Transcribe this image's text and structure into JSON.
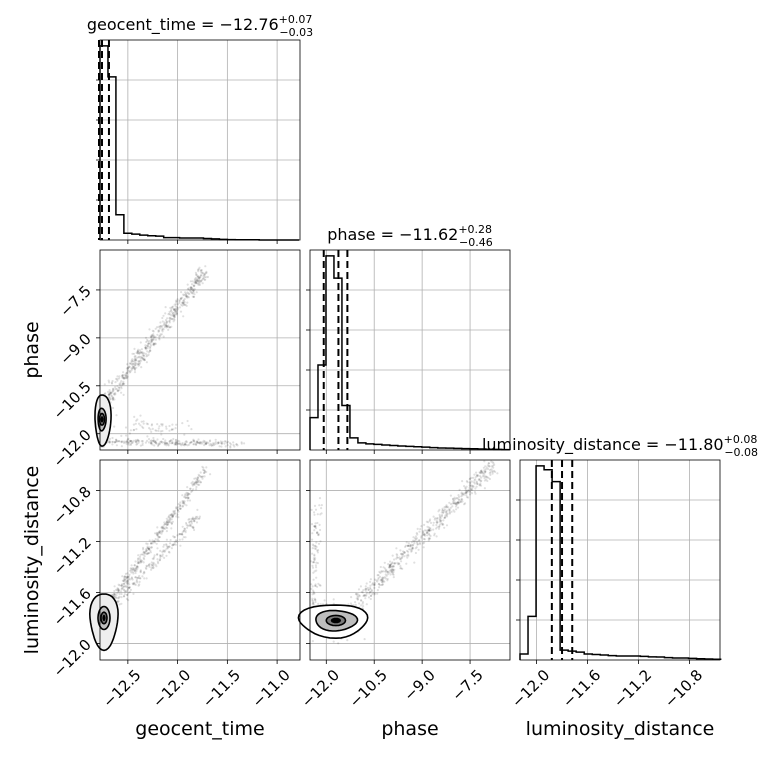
{
  "chart_data": {
    "type": "corner",
    "parameters": [
      "geocent_time",
      "phase",
      "luminosity_distance"
    ],
    "titles": [
      {
        "param": "geocent_time",
        "prefix": "geocent_time = ",
        "median": "−12.76",
        "plus": "+0.07",
        "minus": "−0.03"
      },
      {
        "param": "phase",
        "prefix": "phase = ",
        "median": "−11.62",
        "plus": "+0.28",
        "minus": "−0.46"
      },
      {
        "param": "luminosity_distance",
        "prefix": "luminosity_distance = ",
        "median": "−11.80",
        "plus": "+0.08",
        "minus": "−0.08"
      }
    ],
    "axis_labels": {
      "x": [
        "geocent_time",
        "phase",
        "luminosity_distance"
      ],
      "y": [
        "phase",
        "luminosity_distance"
      ]
    },
    "ranges": {
      "geocent_time": [
        -12.78,
        -10.77
      ],
      "phase": [
        -12.51,
        -6.25
      ],
      "luminosity_distance": [
        -12.13,
        -10.56
      ]
    },
    "ticks": {
      "geocent_time": {
        "values": [
          -12.5,
          -12.0,
          -11.5,
          -11.0
        ],
        "labels": [
          "−12.5",
          "−12.0",
          "−11.5",
          "−11.0"
        ]
      },
      "phase": {
        "values": [
          -12.0,
          -10.5,
          -9.0,
          -7.5
        ],
        "labels": [
          "−12.0",
          "−10.5",
          "−9.0",
          "−7.5"
        ]
      },
      "luminosity_distance": {
        "values": [
          -12.0,
          -11.6,
          -11.2,
          -10.8
        ],
        "labels": [
          "−12.0",
          "−11.6",
          "−11.2",
          "−10.8"
        ]
      }
    },
    "histograms": [
      {
        "param": "geocent_time",
        "bins": [
          -12.78,
          -12.7,
          -12.62,
          -12.54,
          -12.46,
          -12.38,
          -12.3,
          -12.22,
          -12.14,
          -12.06,
          -11.98,
          -11.9,
          -11.82,
          -11.74,
          -11.66,
          -11.58,
          -11.5,
          -11.42,
          -11.34,
          -11.26,
          -11.18,
          -11.1,
          -11.02,
          -10.94,
          -10.86,
          -10.78
        ],
        "counts": [
          1.0,
          0.84,
          0.13,
          0.035,
          0.03,
          0.025,
          0.022,
          0.02,
          0.012,
          0.012,
          0.01,
          0.01,
          0.01,
          0.008,
          0.006,
          0.003,
          0.002,
          0.001,
          0.001,
          0.001,
          0.0,
          0.0,
          0.0,
          0.0,
          0.0
        ],
        "quantiles": [
          -12.79,
          -12.76,
          -12.69
        ]
      },
      {
        "param": "phase",
        "bins": [
          -12.51,
          -12.26,
          -12.01,
          -11.76,
          -11.51,
          -11.26,
          -11.01,
          -10.76,
          -10.51,
          -10.26,
          -10.01,
          -9.76,
          -9.51,
          -9.26,
          -9.01,
          -8.76,
          -8.51,
          -8.26,
          -8.01,
          -7.76,
          -7.51,
          -7.26,
          -7.01,
          -6.76,
          -6.51,
          -6.26
        ],
        "counts": [
          0.16,
          0.42,
          0.96,
          0.85,
          0.22,
          0.06,
          0.035,
          0.03,
          0.028,
          0.025,
          0.022,
          0.02,
          0.018,
          0.016,
          0.014,
          0.012,
          0.01,
          0.009,
          0.008,
          0.007,
          0.006,
          0.005,
          0.004,
          0.003,
          0.002
        ],
        "quantiles": [
          -12.08,
          -11.62,
          -11.34
        ]
      },
      {
        "param": "luminosity_distance",
        "bins": [
          -12.13,
          -12.067,
          -12.004,
          -11.941,
          -11.878,
          -11.815,
          -11.752,
          -11.689,
          -11.626,
          -11.563,
          -11.5,
          -11.437,
          -11.374,
          -11.311,
          -11.248,
          -11.185,
          -11.122,
          -11.059,
          -10.996,
          -10.933,
          -10.87,
          -10.807,
          -10.744,
          -10.681,
          -10.618,
          -10.555
        ],
        "counts": [
          0.03,
          0.22,
          0.98,
          0.96,
          0.9,
          0.05,
          0.045,
          0.04,
          0.03,
          0.028,
          0.025,
          0.022,
          0.02,
          0.02,
          0.02,
          0.018,
          0.016,
          0.015,
          0.012,
          0.01,
          0.01,
          0.008,
          0.006,
          0.005,
          0.004
        ],
        "quantiles": [
          -11.88,
          -11.8,
          -11.72
        ]
      }
    ],
    "scatter": [
      {
        "x": "geocent_time",
        "y": "phase",
        "structure": "dense core near (-12.76, -11.6), diagonal band rising to (-11.75, -7.0), horizontal band near phase -12.3"
      },
      {
        "x": "geocent_time",
        "y": "luminosity_distance",
        "structure": "dense core near (-12.76, -11.8), two diagonal bands rising to (-11.7, -10.64)"
      },
      {
        "x": "phase",
        "y": "luminosity_distance",
        "structure": "dense core near (-11.6, -11.8), diagonal band rising to (-6.8, -10.6)"
      }
    ],
    "grid": true,
    "quantile_line_style": "dashed"
  }
}
